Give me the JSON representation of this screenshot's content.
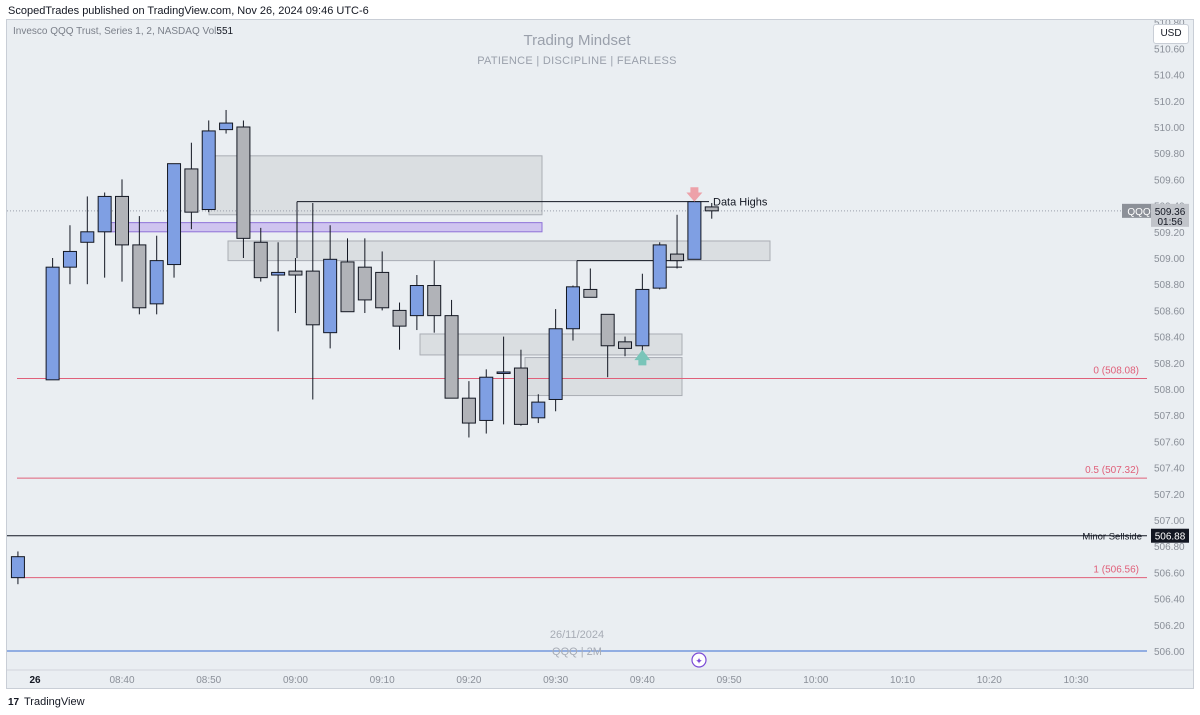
{
  "header": {
    "publish_line": "ScopedTrades published on TradingView.com, Nov 26, 2024 09:46 UTC-6"
  },
  "symbol_info": {
    "text": "Invesco QQQ Trust, Series 1, 2, NASDAQ  Vol",
    "volume": "551"
  },
  "watermark": {
    "title": "Trading Mindset",
    "subtitle": "PATIENCE  |  DISCIPLINE  |  FEARLESS",
    "date": "26/11/2024",
    "symbol_interval": "QQQ | 2M"
  },
  "currency_button": "USD",
  "footer": {
    "brand": "TradingView",
    "logo_glyph": "17"
  },
  "colors": {
    "bull": "#7f9fe3",
    "bear": "#b1b3b8",
    "background": "#eaeef2",
    "fib": "#e0607a",
    "zone": "#d7dade",
    "purple_zone": "#c6b6ee"
  },
  "chart_data": {
    "type": "candlestick",
    "symbol": "QQQ",
    "interval": "2M",
    "ylim": [
      505.96,
      510.98
    ],
    "y_ticks": [
      "510.80",
      "510.60",
      "510.40",
      "510.20",
      "510.00",
      "509.80",
      "509.60",
      "509.40",
      "509.20",
      "509.00",
      "508.80",
      "508.60",
      "508.40",
      "508.20",
      "508.00",
      "507.80",
      "507.60",
      "507.40",
      "507.20",
      "507.00",
      "506.80",
      "506.60",
      "506.40",
      "506.20",
      "506.00"
    ],
    "x_ticks": [
      "26",
      "08:40",
      "08:50",
      "09:00",
      "09:10",
      "09:20",
      "09:30",
      "09:40",
      "09:50",
      "10:00",
      "10:10",
      "10:20",
      "10:30"
    ],
    "candles": [
      {
        "t": "08:28",
        "o": 506.56,
        "h": 506.76,
        "l": 506.51,
        "c": 506.72
      },
      {
        "t": "08:32",
        "o": 508.07,
        "h": 509.0,
        "l": 508.07,
        "c": 508.93
      },
      {
        "t": "08:34",
        "o": 508.93,
        "h": 509.25,
        "l": 508.8,
        "c": 509.05
      },
      {
        "t": "08:36",
        "o": 509.12,
        "h": 509.47,
        "l": 508.8,
        "c": 509.2
      },
      {
        "t": "08:38",
        "o": 509.2,
        "h": 509.5,
        "l": 508.85,
        "c": 509.47
      },
      {
        "t": "08:40",
        "o": 509.47,
        "h": 509.6,
        "l": 508.82,
        "c": 509.1
      },
      {
        "t": "08:42",
        "o": 509.1,
        "h": 509.32,
        "l": 508.57,
        "c": 508.62
      },
      {
        "t": "08:44",
        "o": 508.65,
        "h": 509.17,
        "l": 508.57,
        "c": 508.98
      },
      {
        "t": "08:46",
        "o": 508.95,
        "h": 509.72,
        "l": 508.85,
        "c": 509.72
      },
      {
        "t": "08:48",
        "o": 509.68,
        "h": 509.88,
        "l": 509.22,
        "c": 509.35
      },
      {
        "t": "08:50",
        "o": 509.37,
        "h": 510.05,
        "l": 509.35,
        "c": 509.97
      },
      {
        "t": "08:52",
        "o": 509.98,
        "h": 510.13,
        "l": 509.95,
        "c": 510.03
      },
      {
        "t": "08:54",
        "o": 510.0,
        "h": 510.05,
        "l": 509.0,
        "c": 509.15
      },
      {
        "t": "08:56",
        "o": 509.12,
        "h": 509.23,
        "l": 508.82,
        "c": 508.85
      },
      {
        "t": "08:58",
        "o": 508.87,
        "h": 509.12,
        "l": 508.44,
        "c": 508.89
      },
      {
        "t": "09:00",
        "o": 508.9,
        "h": 509.0,
        "l": 508.58,
        "c": 508.87
      },
      {
        "t": "09:02",
        "o": 508.9,
        "h": 509.42,
        "l": 507.92,
        "c": 508.49
      },
      {
        "t": "09:04",
        "o": 508.43,
        "h": 509.25,
        "l": 508.31,
        "c": 508.99
      },
      {
        "t": "09:06",
        "o": 508.97,
        "h": 509.15,
        "l": 508.6,
        "c": 508.59
      },
      {
        "t": "09:08",
        "o": 508.93,
        "h": 509.15,
        "l": 508.58,
        "c": 508.68
      },
      {
        "t": "09:10",
        "o": 508.89,
        "h": 509.05,
        "l": 508.6,
        "c": 508.62
      },
      {
        "t": "09:12",
        "o": 508.6,
        "h": 508.66,
        "l": 508.3,
        "c": 508.48
      },
      {
        "t": "09:14",
        "o": 508.56,
        "h": 508.87,
        "l": 508.45,
        "c": 508.79
      },
      {
        "t": "09:16",
        "o": 508.79,
        "h": 508.98,
        "l": 508.43,
        "c": 508.56
      },
      {
        "t": "09:18",
        "o": 508.56,
        "h": 508.68,
        "l": 507.94,
        "c": 507.93
      },
      {
        "t": "09:20",
        "o": 507.93,
        "h": 508.06,
        "l": 507.63,
        "c": 507.74
      },
      {
        "t": "09:22",
        "o": 507.76,
        "h": 508.15,
        "l": 507.66,
        "c": 508.09
      },
      {
        "t": "09:24",
        "o": 508.13,
        "h": 508.4,
        "l": 507.73,
        "c": 508.13
      },
      {
        "t": "09:26",
        "o": 508.16,
        "h": 508.3,
        "l": 507.72,
        "c": 507.73
      },
      {
        "t": "09:28",
        "o": 507.78,
        "h": 507.96,
        "l": 507.74,
        "c": 507.9
      },
      {
        "t": "09:30",
        "o": 507.92,
        "h": 508.61,
        "l": 507.83,
        "c": 508.46
      },
      {
        "t": "09:32",
        "o": 508.46,
        "h": 508.79,
        "l": 508.37,
        "c": 508.78
      },
      {
        "t": "09:34",
        "o": 508.76,
        "h": 508.92,
        "l": 508.74,
        "c": 508.7
      },
      {
        "t": "09:36",
        "o": 508.57,
        "h": 508.57,
        "l": 508.09,
        "c": 508.33
      },
      {
        "t": "09:38",
        "o": 508.36,
        "h": 508.4,
        "l": 508.25,
        "c": 508.31
      },
      {
        "t": "09:40",
        "o": 508.33,
        "h": 508.88,
        "l": 508.24,
        "c": 508.76
      },
      {
        "t": "09:42",
        "o": 508.77,
        "h": 509.12,
        "l": 508.76,
        "c": 509.1
      },
      {
        "t": "09:44",
        "o": 509.03,
        "h": 509.33,
        "l": 508.92,
        "c": 508.98
      },
      {
        "t": "09:46",
        "o": 508.99,
        "h": 509.45,
        "l": 508.99,
        "c": 509.43
      },
      {
        "t": "09:48",
        "o": 509.39,
        "h": 509.42,
        "l": 509.3,
        "c": 509.36
      }
    ],
    "levels": [
      {
        "name": "fib-0",
        "label": "0 (508.08)",
        "price": 508.08
      },
      {
        "name": "fib-0-5",
        "label": "0.5 (507.32)",
        "price": 507.32
      },
      {
        "name": "fib-1",
        "label": "1 (506.56)",
        "price": 506.56
      },
      {
        "name": "minor-sellside",
        "label": "Minor Sellside",
        "price": 506.88,
        "price_label": "506.88"
      }
    ],
    "annotations": {
      "data_highs": "Data Highs"
    },
    "price_tag": {
      "symbol": "QQQ",
      "price": "509.36",
      "countdown": "01:56"
    },
    "session_start_price": 506.0
  }
}
